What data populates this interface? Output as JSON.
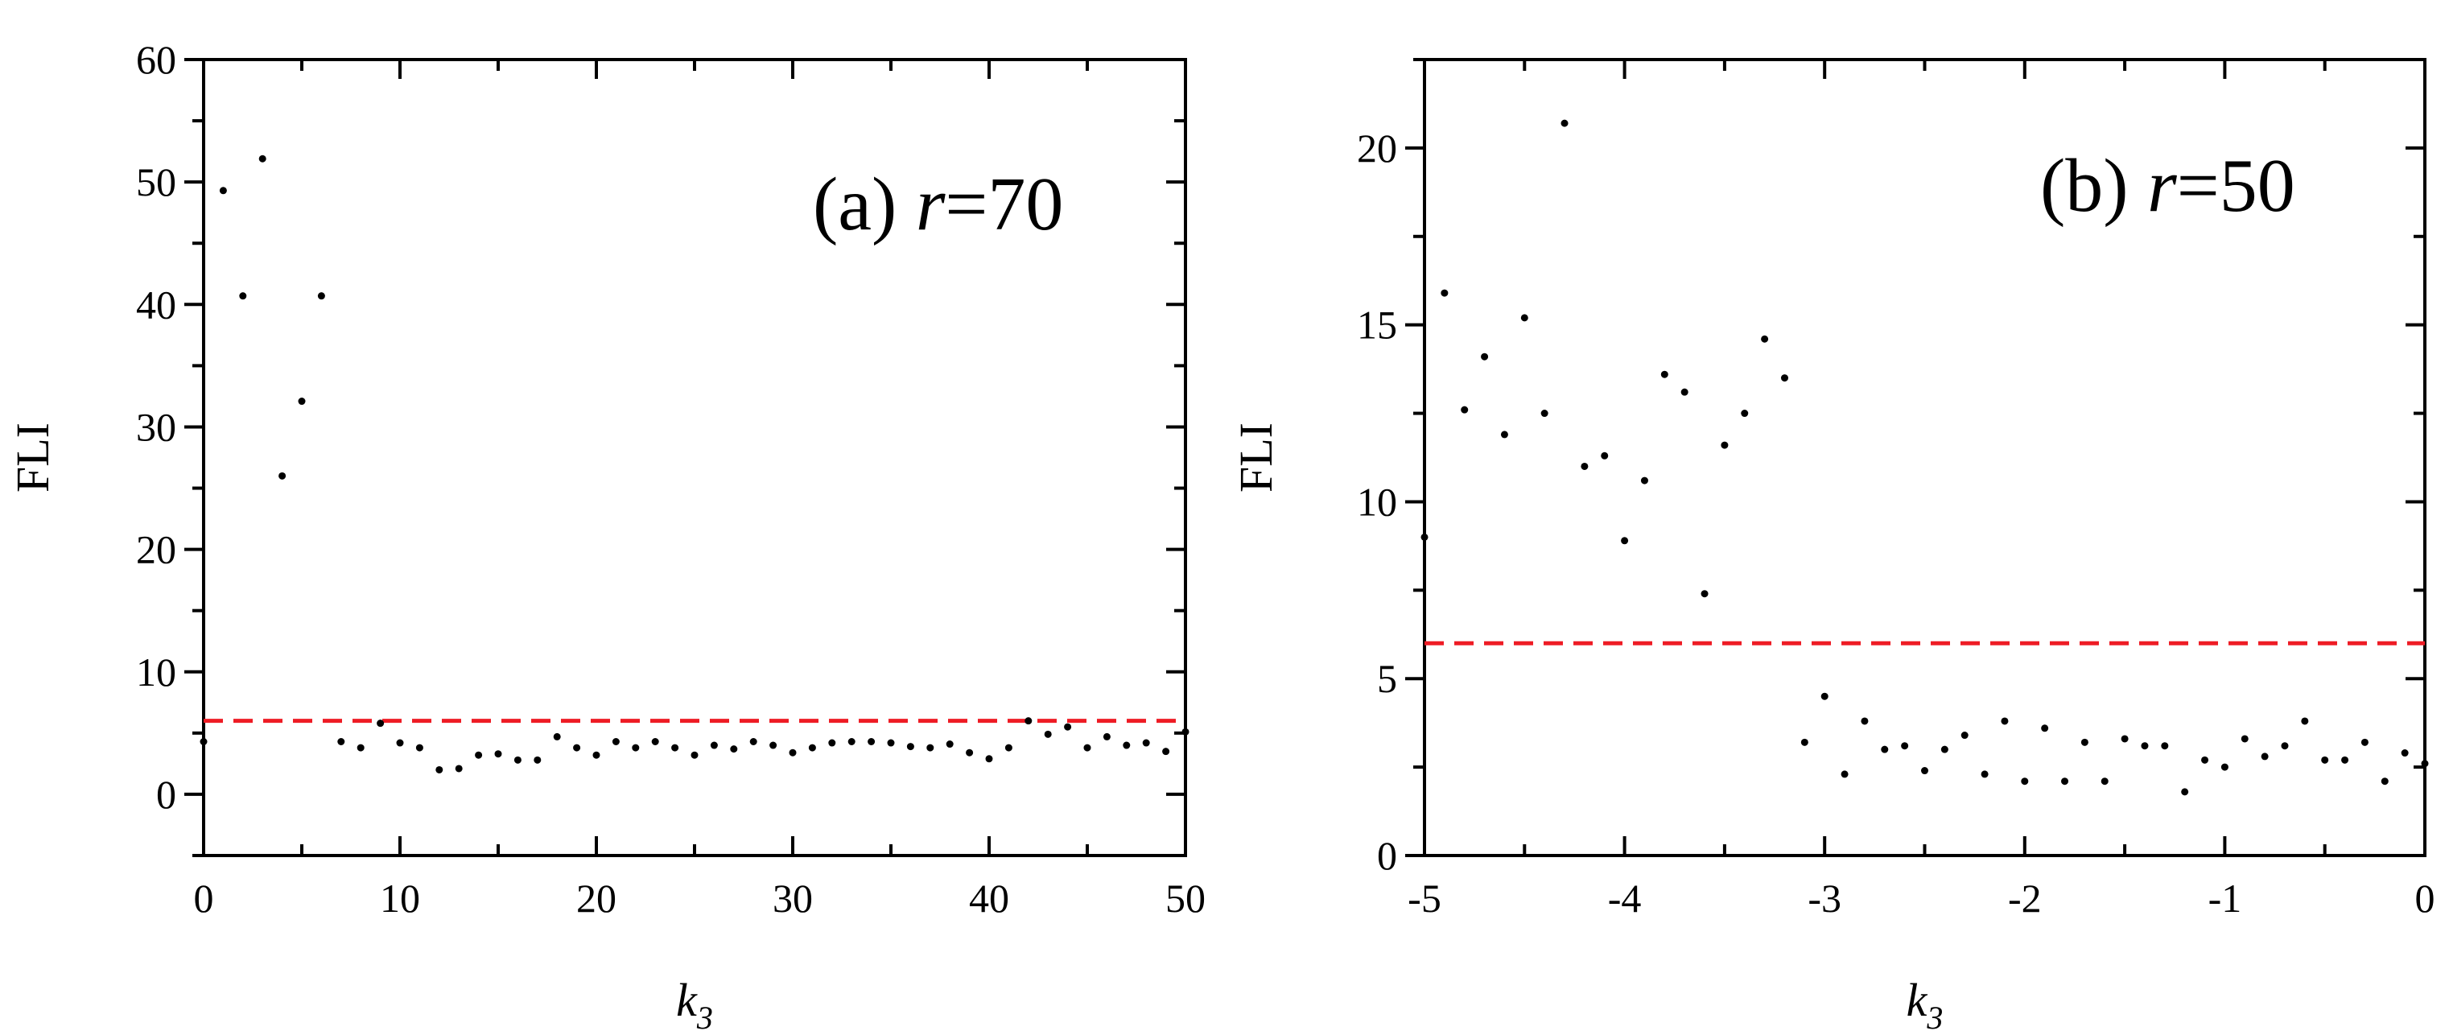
{
  "chart_data": [
    {
      "type": "scatter",
      "panel_label": "(a)",
      "title_var": "r",
      "title_rest": "=70",
      "xlabel_main": "k",
      "xlabel_sub": "3",
      "ylabel": "FLI",
      "xlim": [
        0,
        50
      ],
      "ylim": [
        -5,
        60
      ],
      "x_major_ticks": [
        0,
        10,
        20,
        30,
        40,
        50
      ],
      "x_tick_labels": [
        "0",
        "10",
        "20",
        "30",
        "40",
        "50"
      ],
      "y_major_ticks": [
        0,
        10,
        20,
        30,
        40,
        50,
        60
      ],
      "y_tick_labels": [
        "0",
        "10",
        "20",
        "30",
        "40",
        "50",
        "60"
      ],
      "x_minor_step": 5,
      "y_minor_step": 5,
      "threshold": 6,
      "threshold_color": "#ee1c25",
      "marker_color": "#000000",
      "grid": false,
      "x": [
        0,
        1,
        2,
        3,
        4,
        5,
        6,
        7,
        8,
        9,
        10,
        11,
        12,
        13,
        14,
        15,
        16,
        17,
        18,
        19,
        20,
        21,
        22,
        23,
        24,
        25,
        26,
        27,
        28,
        29,
        30,
        31,
        32,
        33,
        34,
        35,
        36,
        37,
        38,
        39,
        40,
        41,
        42,
        43,
        44,
        45,
        46,
        47,
        48,
        49,
        50
      ],
      "y": [
        4.3,
        49.3,
        40.7,
        51.9,
        26.0,
        32.1,
        40.7,
        4.3,
        3.8,
        5.8,
        4.2,
        3.8,
        2.0,
        2.1,
        3.2,
        3.3,
        2.8,
        2.8,
        4.7,
        3.8,
        3.2,
        4.3,
        3.8,
        4.3,
        3.8,
        3.2,
        4.0,
        3.7,
        4.3,
        4.0,
        3.4,
        3.8,
        4.2,
        4.3,
        4.3,
        4.2,
        3.9,
        3.8,
        4.1,
        3.4,
        2.9,
        3.8,
        6.0,
        4.9,
        5.5,
        3.8,
        4.7,
        4.0,
        4.2,
        3.5,
        5.1
      ]
    },
    {
      "type": "scatter",
      "panel_label": "(b)",
      "title_var": "r",
      "title_rest": "=50",
      "xlabel_main": "k",
      "xlabel_sub": "3",
      "ylabel": "FLI",
      "xlim": [
        -5,
        0
      ],
      "ylim": [
        0,
        22.5
      ],
      "x_major_ticks": [
        -5,
        -4,
        -3,
        -2,
        -1,
        0
      ],
      "x_tick_labels": [
        "-5",
        "-4",
        "-3",
        "-2",
        "-1",
        "0"
      ],
      "y_major_ticks": [
        0,
        5,
        10,
        15,
        20
      ],
      "y_tick_labels": [
        "0",
        "5",
        "10",
        "15",
        "20"
      ],
      "x_minor_step": 0.5,
      "y_minor_step": 2.5,
      "threshold": 6,
      "threshold_color": "#ee1c25",
      "marker_color": "#000000",
      "grid": false,
      "x": [
        -5.0,
        -4.9,
        -4.8,
        -4.7,
        -4.6,
        -4.5,
        -4.4,
        -4.3,
        -4.2,
        -4.1,
        -4.0,
        -3.9,
        -3.8,
        -3.7,
        -3.6,
        -3.5,
        -3.4,
        -3.3,
        -3.2,
        -3.1,
        -3.0,
        -2.9,
        -2.8,
        -2.7,
        -2.6,
        -2.5,
        -2.4,
        -2.3,
        -2.2,
        -2.1,
        -2.0,
        -1.9,
        -1.8,
        -1.7,
        -1.6,
        -1.5,
        -1.4,
        -1.3,
        -1.2,
        -1.1,
        -1.0,
        -0.9,
        -0.8,
        -0.7,
        -0.6,
        -0.5,
        -0.4,
        -0.3,
        -0.2,
        -0.1,
        0.0
      ],
      "y": [
        9.0,
        15.9,
        12.6,
        14.1,
        11.9,
        15.2,
        12.5,
        20.7,
        11.0,
        11.3,
        8.9,
        10.6,
        13.6,
        13.1,
        7.4,
        11.6,
        12.5,
        14.6,
        13.5,
        3.2,
        4.5,
        2.3,
        3.8,
        3.0,
        3.1,
        2.4,
        3.0,
        3.4,
        2.3,
        3.8,
        2.1,
        3.6,
        2.1,
        3.2,
        2.1,
        3.3,
        3.1,
        3.1,
        1.8,
        2.7,
        2.5,
        3.3,
        2.8,
        3.1,
        3.8,
        2.7,
        2.7,
        3.2,
        2.1,
        2.9,
        2.6
      ]
    }
  ]
}
